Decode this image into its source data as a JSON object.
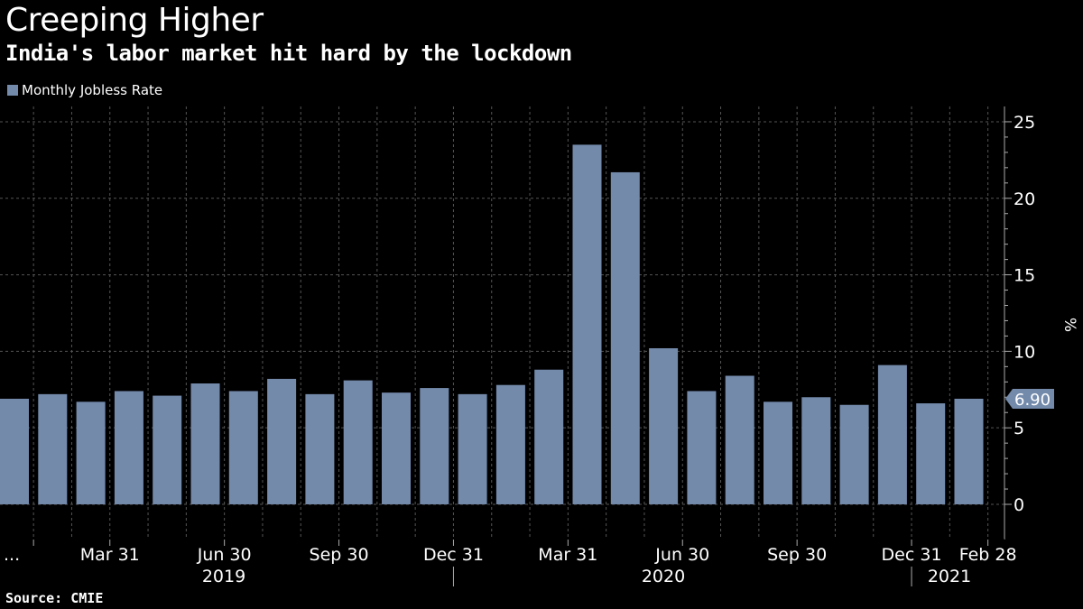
{
  "chart_data": {
    "type": "bar",
    "title": "Creeping Higher",
    "subtitle": "India's labor market hit hard by the lockdown",
    "ylabel": "%",
    "ylim": [
      -2.3,
      26
    ],
    "yticks": [
      0,
      5,
      10,
      15,
      20,
      25
    ],
    "grid": true,
    "legend_position": "top-left",
    "series": [
      {
        "name": "Monthly Jobless Rate",
        "color": "#738aab",
        "values": [
          6.9,
          7.2,
          6.7,
          7.4,
          7.1,
          7.9,
          7.4,
          8.2,
          7.2,
          8.1,
          7.3,
          7.6,
          7.2,
          7.8,
          8.8,
          23.5,
          21.7,
          10.2,
          7.4,
          8.4,
          6.7,
          7.0,
          6.5,
          9.1,
          6.6,
          6.9
        ]
      }
    ],
    "x_tick_labels": [
      "...",
      "Mar 31",
      "Jun 30",
      "Sep 30",
      "Dec 31",
      "Mar 31",
      "Jun 30",
      "Sep 30",
      "Dec 31",
      "Feb 28"
    ],
    "year_labels": [
      "2019",
      "2020",
      "2021"
    ],
    "last_value_label": "6.90"
  },
  "source": "Source: CMIE"
}
